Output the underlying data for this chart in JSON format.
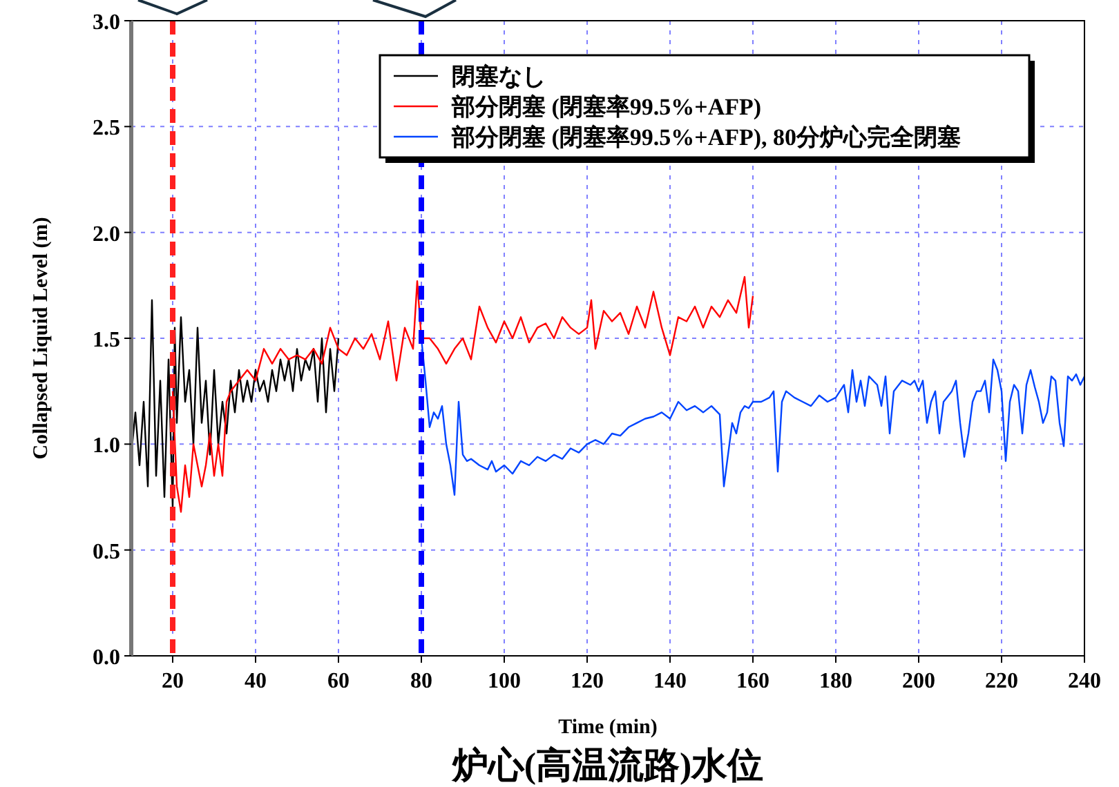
{
  "chart_data": {
    "type": "line",
    "title": "炉心(高温流路)水位",
    "xlabel": "Time (min)",
    "ylabel": "Collapsed Liquid Level (m)",
    "xlim": [
      10,
      240
    ],
    "xticks": [
      20,
      40,
      60,
      80,
      100,
      120,
      140,
      160,
      180,
      200,
      220,
      240
    ],
    "ylim": [
      0,
      3
    ],
    "yticks": [
      {
        "value": 0,
        "label": "0.0"
      },
      {
        "value": 0.5,
        "label": "0.5"
      },
      {
        "value": 1,
        "label": "1.0"
      },
      {
        "value": 1.5,
        "label": "1.5"
      },
      {
        "value": 2,
        "label": "2.0"
      },
      {
        "value": 2.5,
        "label": "2.5"
      },
      {
        "value": 3,
        "label": "3.0"
      }
    ],
    "grid": true,
    "legend": "top right",
    "line_style": "solid",
    "ref_lines": [
      {
        "axis": "x",
        "value": 20,
        "color": "#ff2020",
        "line_style": "dashed"
      },
      {
        "axis": "x",
        "value": 80,
        "color": "#0000ff",
        "line_style": "dashed"
      }
    ],
    "series": [
      {
        "name": "閉塞なし",
        "color": "#000000",
        "x": [
          10,
          11,
          12,
          13,
          14,
          15,
          16,
          17,
          18,
          19,
          20,
          20.5,
          21,
          22,
          23,
          24,
          25,
          26,
          27,
          28,
          29,
          30,
          31,
          32,
          33,
          34,
          35,
          36,
          37,
          38,
          39,
          40,
          41,
          42,
          43,
          44,
          45,
          46,
          47,
          48,
          49,
          50,
          51,
          52,
          53,
          54,
          55,
          56,
          57,
          58,
          59,
          60
        ],
        "values": [
          0.95,
          1.15,
          0.9,
          1.2,
          0.8,
          1.68,
          0.85,
          1.3,
          0.75,
          1.4,
          0.7,
          1.55,
          1.1,
          1.6,
          1.2,
          1.35,
          1.0,
          1.55,
          1.1,
          1.3,
          0.95,
          1.35,
          1.0,
          1.2,
          1.05,
          1.3,
          1.15,
          1.35,
          1.2,
          1.3,
          1.2,
          1.35,
          1.25,
          1.3,
          1.2,
          1.35,
          1.25,
          1.4,
          1.3,
          1.4,
          1.25,
          1.45,
          1.3,
          1.4,
          1.35,
          1.45,
          1.2,
          1.5,
          1.15,
          1.45,
          1.25,
          1.5
        ]
      },
      {
        "name": "部分閉塞 (閉塞率99.5%+AFP)",
        "color": "#ff0000",
        "x": [
          20,
          21,
          22,
          23,
          24,
          25,
          26,
          27,
          28,
          29,
          30,
          31,
          32,
          33,
          34,
          36,
          38,
          40,
          42,
          44,
          46,
          48,
          50,
          52,
          54,
          56,
          58,
          60,
          62,
          64,
          66,
          68,
          70,
          72,
          74,
          76,
          78,
          79,
          80,
          82,
          84,
          86,
          88,
          90,
          92,
          94,
          96,
          98,
          100,
          102,
          104,
          106,
          108,
          110,
          112,
          114,
          116,
          118,
          120,
          121,
          122,
          124,
          126,
          128,
          130,
          132,
          134,
          136,
          138,
          140,
          142,
          144,
          146,
          148,
          150,
          152,
          154,
          156,
          158,
          159,
          160
        ],
        "values": [
          1.25,
          0.8,
          0.68,
          0.9,
          0.75,
          1.0,
          0.9,
          0.8,
          0.9,
          1.05,
          0.85,
          1.0,
          0.85,
          1.2,
          1.25,
          1.3,
          1.35,
          1.3,
          1.45,
          1.38,
          1.45,
          1.4,
          1.42,
          1.4,
          1.45,
          1.38,
          1.55,
          1.45,
          1.42,
          1.5,
          1.45,
          1.52,
          1.4,
          1.58,
          1.3,
          1.55,
          1.45,
          1.77,
          1.5,
          1.5,
          1.45,
          1.38,
          1.45,
          1.5,
          1.4,
          1.65,
          1.55,
          1.48,
          1.58,
          1.5,
          1.6,
          1.48,
          1.55,
          1.57,
          1.5,
          1.6,
          1.55,
          1.52,
          1.55,
          1.68,
          1.45,
          1.63,
          1.58,
          1.62,
          1.52,
          1.65,
          1.55,
          1.72,
          1.55,
          1.42,
          1.6,
          1.58,
          1.65,
          1.55,
          1.65,
          1.6,
          1.68,
          1.62,
          1.79,
          1.55,
          1.7
        ]
      },
      {
        "name": "部分閉塞 (閉塞率99.5%+AFP), 80分炉心完全閉塞",
        "color": "#0044ff",
        "x": [
          80,
          81,
          82,
          83,
          84,
          85,
          86,
          87,
          88,
          89,
          90,
          91,
          92,
          94,
          96,
          97,
          98,
          100,
          102,
          104,
          106,
          108,
          110,
          112,
          114,
          116,
          118,
          120,
          122,
          124,
          126,
          128,
          130,
          132,
          134,
          136,
          138,
          140,
          142,
          144,
          146,
          148,
          150,
          152,
          153,
          155,
          156,
          157,
          158,
          159,
          160,
          162,
          164,
          165,
          166,
          167,
          168,
          170,
          172,
          174,
          176,
          178,
          180,
          182,
          183,
          184,
          185,
          186,
          187,
          188,
          190,
          191,
          192,
          193,
          194,
          196,
          198,
          199,
          200,
          201,
          202,
          203,
          204,
          205,
          206,
          208,
          209,
          210,
          211,
          212,
          213,
          214,
          215,
          216,
          217,
          218,
          219,
          220,
          221,
          222,
          223,
          224,
          225,
          226,
          227,
          228,
          229,
          230,
          231,
          232,
          233,
          234,
          235,
          236,
          237,
          238,
          239,
          240
        ],
        "values": [
          1.5,
          1.3,
          1.08,
          1.15,
          1.12,
          1.18,
          1.0,
          0.9,
          0.76,
          1.2,
          0.95,
          0.92,
          0.93,
          0.9,
          0.88,
          0.92,
          0.87,
          0.9,
          0.86,
          0.92,
          0.9,
          0.94,
          0.92,
          0.95,
          0.93,
          0.98,
          0.96,
          1.0,
          1.02,
          1.0,
          1.05,
          1.04,
          1.08,
          1.1,
          1.12,
          1.13,
          1.15,
          1.12,
          1.2,
          1.16,
          1.18,
          1.15,
          1.18,
          1.14,
          0.8,
          1.1,
          1.05,
          1.15,
          1.18,
          1.17,
          1.2,
          1.2,
          1.22,
          1.25,
          0.87,
          1.2,
          1.25,
          1.22,
          1.2,
          1.18,
          1.23,
          1.2,
          1.22,
          1.28,
          1.15,
          1.35,
          1.2,
          1.3,
          1.18,
          1.32,
          1.28,
          1.18,
          1.32,
          1.05,
          1.25,
          1.3,
          1.28,
          1.3,
          1.25,
          1.3,
          1.1,
          1.2,
          1.25,
          1.05,
          1.2,
          1.25,
          1.3,
          1.1,
          0.94,
          1.05,
          1.2,
          1.25,
          1.25,
          1.3,
          1.15,
          1.4,
          1.35,
          1.25,
          0.92,
          1.2,
          1.28,
          1.25,
          1.05,
          1.28,
          1.35,
          1.27,
          1.2,
          1.1,
          1.15,
          1.32,
          1.3,
          1.1,
          0.99,
          1.32,
          1.3,
          1.33,
          1.28,
          1.32
        ]
      }
    ]
  }
}
